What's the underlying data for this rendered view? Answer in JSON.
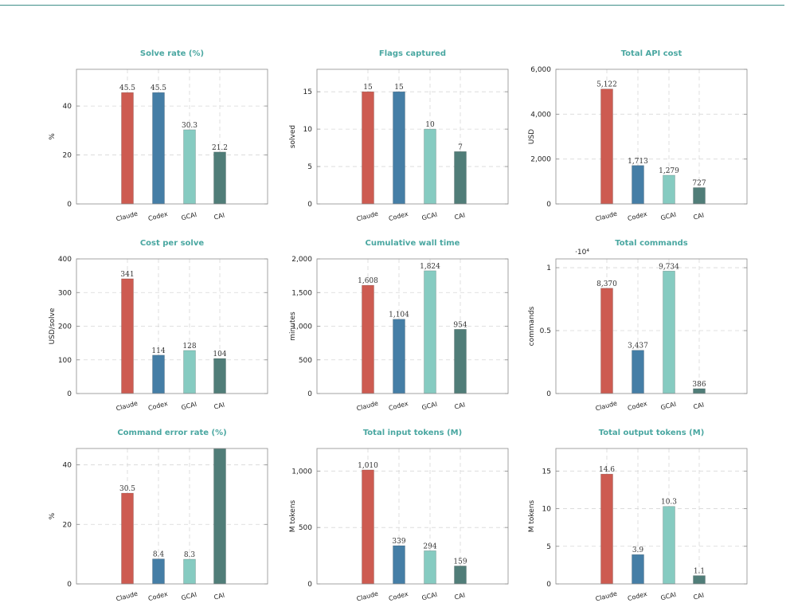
{
  "colors": {
    "Claude": "#cd5b51",
    "Codex": "#457ea6",
    "GCAI": "#86cbc1",
    "CAI": "#507d78",
    "title": "#4aa7a1"
  },
  "chart_data": [
    {
      "type": "bar",
      "title": "Solve rate (%)",
      "ylabel": "%",
      "categories": [
        "Claude",
        "Codex",
        "GCAI",
        "CAI"
      ],
      "values": [
        45.5,
        45.5,
        30.3,
        21.2
      ],
      "labels": [
        "45.5",
        "45.5",
        "30.3",
        "21.2"
      ],
      "ylim": [
        0,
        55
      ],
      "yticks": [
        0,
        20,
        40
      ],
      "ytick_labels": [
        "0",
        "20",
        "40"
      ],
      "grid": true
    },
    {
      "type": "bar",
      "title": "Flags captured",
      "ylabel": "solved",
      "categories": [
        "Claude",
        "Codex",
        "GCAI",
        "CAI"
      ],
      "values": [
        15,
        15,
        10,
        7
      ],
      "labels": [
        "15",
        "15",
        "10",
        "7"
      ],
      "ylim": [
        0,
        18
      ],
      "yticks": [
        0,
        5,
        10,
        15
      ],
      "ytick_labels": [
        "0",
        "5",
        "10",
        "15"
      ],
      "grid": true
    },
    {
      "type": "bar",
      "title": "Total API cost",
      "ylabel": "USD",
      "categories": [
        "Claude",
        "Codex",
        "GCAI",
        "CAI"
      ],
      "values": [
        5122,
        1713,
        1279,
        727
      ],
      "labels": [
        "5,122",
        "1,713",
        "1,279",
        "727"
      ],
      "ylim": [
        0,
        6000
      ],
      "yticks": [
        0,
        2000,
        4000,
        6000
      ],
      "ytick_labels": [
        "0",
        "2,000",
        "4,000",
        "6,000"
      ],
      "grid": true
    },
    {
      "type": "bar",
      "title": "Cost per solve",
      "ylabel": "USD/solve",
      "categories": [
        "Claude",
        "Codex",
        "GCAI",
        "CAI"
      ],
      "values": [
        341,
        114,
        128,
        104
      ],
      "labels": [
        "341",
        "114",
        "128",
        "104"
      ],
      "ylim": [
        0,
        400
      ],
      "yticks": [
        0,
        100,
        200,
        300,
        400
      ],
      "ytick_labels": [
        "0",
        "100",
        "200",
        "300",
        "400"
      ],
      "grid": true
    },
    {
      "type": "bar",
      "title": "Cumulative wall time",
      "ylabel": "minutes",
      "categories": [
        "Claude",
        "Codex",
        "GCAI",
        "CAI"
      ],
      "values": [
        1608,
        1104,
        1824,
        954
      ],
      "labels": [
        "1,608",
        "1,104",
        "1,824",
        "954"
      ],
      "ylim": [
        0,
        2000
      ],
      "yticks": [
        0,
        500,
        1000,
        1500,
        2000
      ],
      "ytick_labels": [
        "0",
        "500",
        "1,000",
        "1,500",
        "2,000"
      ],
      "grid": true
    },
    {
      "type": "bar",
      "title": "Total commands",
      "ylabel": "commands",
      "axis_multiplier": "·10⁴",
      "categories": [
        "Claude",
        "Codex",
        "GCAI",
        "CAI"
      ],
      "values": [
        8370,
        3437,
        9734,
        386
      ],
      "labels": [
        "8,370",
        "3,437",
        "9,734",
        "386"
      ],
      "ylim": [
        0,
        10700
      ],
      "yticks": [
        0,
        5000,
        10000
      ],
      "ytick_labels": [
        "0",
        "0.5",
        "1"
      ],
      "grid": true
    },
    {
      "type": "bar",
      "title": "Command error rate (%)",
      "ylabel": "%",
      "categories": [
        "Claude",
        "Codex",
        "GCAI",
        "CAI"
      ],
      "values": [
        30.5,
        8.4,
        8.3,
        45.5
      ],
      "labels": [
        "30.5",
        "8.4",
        "8.3",
        ""
      ],
      "ylim": [
        0,
        45.5
      ],
      "yticks": [
        0,
        20,
        40
      ],
      "ytick_labels": [
        "0",
        "20",
        "40"
      ],
      "grid": true
    },
    {
      "type": "bar",
      "title": "Total input tokens (M)",
      "ylabel": "M tokens",
      "categories": [
        "Claude",
        "Codex",
        "GCAI",
        "CAI"
      ],
      "values": [
        1010,
        339,
        294,
        159
      ],
      "labels": [
        "1,010",
        "339",
        "294",
        "159"
      ],
      "ylim": [
        0,
        1200
      ],
      "yticks": [
        0,
        500,
        1000
      ],
      "ytick_labels": [
        "0",
        "500",
        "1,000"
      ],
      "grid": true
    },
    {
      "type": "bar",
      "title": "Total output tokens (M)",
      "ylabel": "M tokens",
      "categories": [
        "Claude",
        "Codex",
        "GCAI",
        "CAI"
      ],
      "values": [
        14.6,
        3.9,
        10.3,
        1.1
      ],
      "labels": [
        "14.6",
        "3.9",
        "10.3",
        "1.1"
      ],
      "ylim": [
        0,
        18
      ],
      "yticks": [
        0,
        5,
        10,
        15
      ],
      "ytick_labels": [
        "0",
        "5",
        "10",
        "15"
      ],
      "grid": true
    }
  ]
}
